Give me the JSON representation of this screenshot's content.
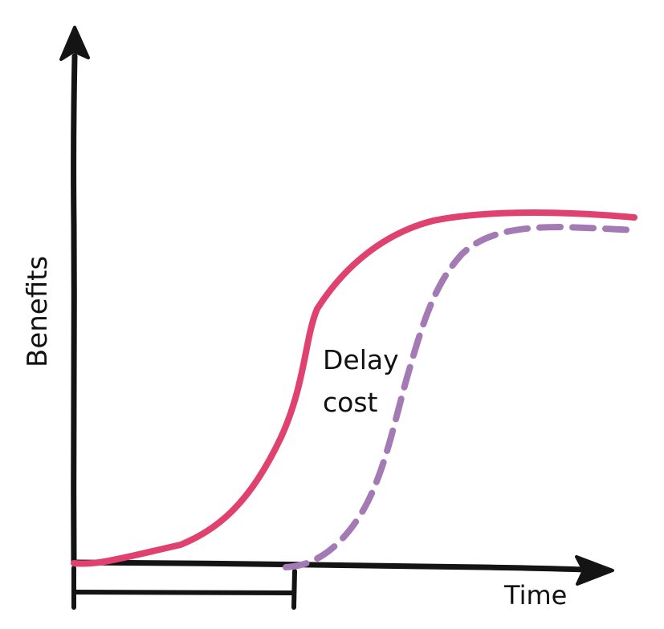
{
  "chart_data": {
    "type": "line",
    "ylabel": "Benefits",
    "xlabel": "Time",
    "annotation": {
      "line1": "Delay",
      "line2": "cost"
    },
    "series": [
      {
        "style": "solid",
        "color": "#e0426f"
      },
      {
        "style": "dashed",
        "color": "#a47ab5"
      }
    ]
  }
}
